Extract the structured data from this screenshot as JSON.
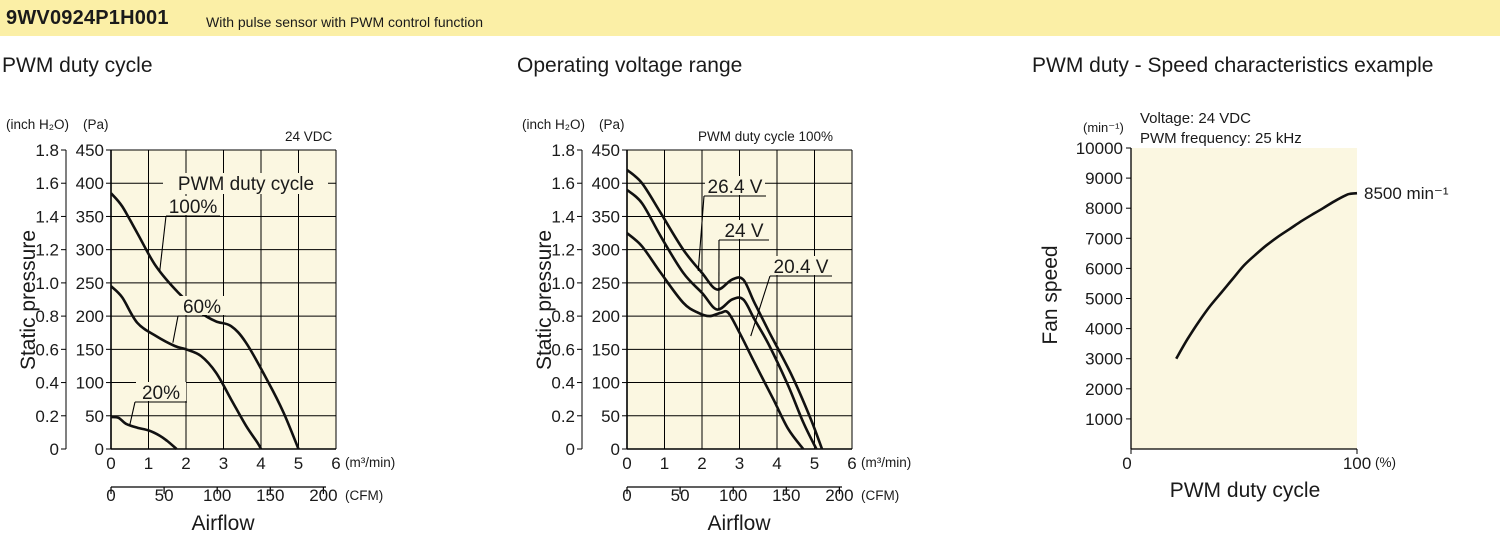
{
  "header": {
    "model": "9WV0924P1H001",
    "description": "With pulse sensor with PWM control function",
    "background": "#fbefa6"
  },
  "colors": {
    "plot_bg": "#fbf7e1",
    "grid": "#000000",
    "curve": "#111111"
  },
  "chart_data": [
    {
      "type": "line",
      "title": "PWM duty cycle",
      "note": "24 VDC",
      "ylabel": "Static pressure",
      "xlabel": "Airflow",
      "y_unit_primary": "(inch H₂O)",
      "y_unit_secondary": "(Pa)",
      "x_unit_primary": "(m³/min)",
      "x_unit_secondary": "(CFM)",
      "xlim": [
        0,
        6
      ],
      "ylim": [
        0,
        450
      ],
      "x_ticks": [
        "0",
        "1",
        "2",
        "3",
        "4",
        "5",
        "6"
      ],
      "y_ticks_pa": [
        "0",
        "50",
        "100",
        "150",
        "200",
        "250",
        "300",
        "350",
        "400",
        "450"
      ],
      "y_ticks_inch": [
        "0",
        "0.2",
        "0.4",
        "0.6",
        "0.8",
        "1.0",
        "1.2",
        "1.4",
        "1.6",
        "1.8"
      ],
      "x_ticks_cfm": [
        "0",
        "50",
        "100",
        "150",
        "200"
      ],
      "legend_label": "PWM duty cycle",
      "series": [
        {
          "name": "100%",
          "x": [
            0,
            0.3,
            0.7,
            1.2,
            1.8,
            2.4,
            2.8,
            3.2,
            3.6,
            4.2,
            4.6,
            5.0
          ],
          "y": [
            385,
            365,
            325,
            275,
            235,
            205,
            192,
            185,
            160,
            100,
            55,
            0
          ]
        },
        {
          "name": "60%",
          "x": [
            0,
            0.3,
            0.7,
            1.2,
            1.7,
            2.0,
            2.4,
            2.8,
            3.2,
            3.6,
            3.9,
            4.0
          ],
          "y": [
            245,
            228,
            190,
            170,
            155,
            150,
            140,
            115,
            75,
            35,
            10,
            0
          ]
        },
        {
          "name": "20%",
          "x": [
            0,
            0.2,
            0.4,
            0.7,
            1.0,
            1.3,
            1.5,
            1.75
          ],
          "y": [
            48,
            47,
            38,
            32,
            28,
            20,
            12,
            0
          ]
        }
      ]
    },
    {
      "type": "line",
      "title": "Operating voltage range",
      "note": "PWM duty cycle 100%",
      "ylabel": "Static pressure",
      "xlabel": "Airflow",
      "y_unit_primary": "(inch H₂O)",
      "y_unit_secondary": "(Pa)",
      "x_unit_primary": "(m³/min)",
      "x_unit_secondary": "(CFM)",
      "xlim": [
        0,
        6
      ],
      "ylim": [
        0,
        450
      ],
      "x_ticks": [
        "0",
        "1",
        "2",
        "3",
        "4",
        "5",
        "6"
      ],
      "y_ticks_pa": [
        "0",
        "50",
        "100",
        "150",
        "200",
        "250",
        "300",
        "350",
        "400",
        "450"
      ],
      "y_ticks_inch": [
        "0",
        "0.2",
        "0.4",
        "0.6",
        "0.8",
        "1.0",
        "1.2",
        "1.4",
        "1.6",
        "1.8"
      ],
      "x_ticks_cfm": [
        "0",
        "50",
        "100",
        "150",
        "200"
      ],
      "series": [
        {
          "name": "26.4 V",
          "x": [
            0,
            0.4,
            0.9,
            1.5,
            2.0,
            2.4,
            2.8,
            3.1,
            3.4,
            3.8,
            4.4,
            4.9,
            5.2
          ],
          "y": [
            420,
            400,
            355,
            300,
            265,
            240,
            255,
            255,
            220,
            175,
            110,
            45,
            0
          ]
        },
        {
          "name": "24 V",
          "x": [
            0,
            0.4,
            0.9,
            1.5,
            2.0,
            2.4,
            2.8,
            3.1,
            3.4,
            3.8,
            4.3,
            4.7,
            5.05
          ],
          "y": [
            390,
            370,
            320,
            265,
            235,
            210,
            225,
            225,
            195,
            155,
            95,
            40,
            0
          ]
        },
        {
          "name": "20.4 V",
          "x": [
            0,
            0.4,
            0.9,
            1.5,
            1.9,
            2.2,
            2.5,
            2.7,
            3.0,
            3.4,
            3.9,
            4.3,
            4.7
          ],
          "y": [
            325,
            305,
            265,
            220,
            205,
            200,
            205,
            205,
            175,
            130,
            75,
            30,
            0
          ]
        }
      ]
    },
    {
      "type": "line",
      "title": "PWM duty - Speed characteristics example",
      "annotations": [
        "Voltage: 24 VDC",
        "PWM frequency: 25 kHz"
      ],
      "end_label": "8500 min⁻¹",
      "ylabel": "Fan speed",
      "xlabel": "PWM duty cycle",
      "y_unit": "(min⁻¹)",
      "x_unit": "(%)",
      "xlim": [
        0,
        100
      ],
      "ylim": [
        0,
        10000
      ],
      "x_ticks": [
        "0",
        "100"
      ],
      "y_ticks": [
        "1000",
        "2000",
        "3000",
        "4000",
        "5000",
        "6000",
        "7000",
        "8000",
        "9000",
        "10000"
      ],
      "series": [
        {
          "x": [
            20,
            25,
            30,
            35,
            40,
            45,
            50,
            55,
            60,
            65,
            70,
            75,
            80,
            85,
            90,
            95,
            97,
            100
          ],
          "y": [
            3000,
            3650,
            4230,
            4750,
            5200,
            5650,
            6100,
            6450,
            6770,
            7050,
            7300,
            7550,
            7780,
            8000,
            8230,
            8430,
            8480,
            8500
          ]
        }
      ]
    }
  ]
}
